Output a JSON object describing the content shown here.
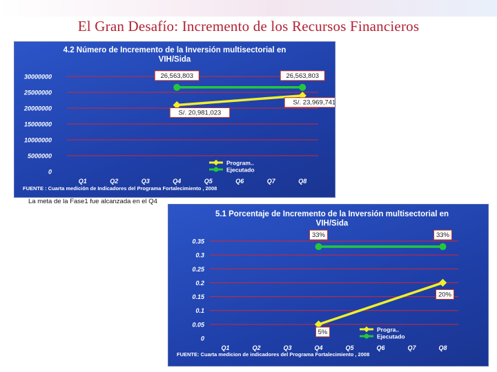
{
  "slide": {
    "title": "El Gran Desafío: Incremento de los Recursos Financieros",
    "note": "La meta de la Fase1 fue alcanzada en el Q4"
  },
  "chart_data": [
    {
      "type": "line",
      "title": "4.2 Número de Incremento de la Inversión multisectorial en VIH/Sida",
      "categories": [
        "Q1",
        "Q2",
        "Q3",
        "Q4",
        "Q5",
        "Q6",
        "Q7",
        "Q8"
      ],
      "ylim": [
        0,
        30000000
      ],
      "yticks": [
        "0",
        "5000000",
        "10000000",
        "15000000",
        "20000000",
        "25000000",
        "30000000"
      ],
      "grid": true,
      "legend_position": "bottom-right",
      "source": "FUENTE : Cuarta medición de Indicadores del Programa Fortalecimiento , 2008",
      "series": [
        {
          "name": "Program..",
          "color": "#f0f02a",
          "points": [
            {
              "x": "Q4",
              "y": 20981023
            },
            {
              "x": "Q8",
              "y": 23969741
            }
          ]
        },
        {
          "name": "Ejecutado",
          "color": "#22c83c",
          "points": [
            {
              "x": "Q4",
              "y": 26563803
            },
            {
              "x": "Q8",
              "y": 26563803
            }
          ]
        }
      ],
      "annotations": [
        {
          "text": "26,563,803",
          "x": "Q4",
          "series": "Ejecutado"
        },
        {
          "text": "26,563,803",
          "x": "Q8",
          "series": "Ejecutado"
        },
        {
          "text": "S/. 20,981,023",
          "x": "Q4",
          "series": "Program.."
        },
        {
          "text": "S/. 23,969,741",
          "x": "Q8",
          "series": "Program.."
        }
      ]
    },
    {
      "type": "line",
      "title": "5.1 Porcentaje de Incremento de la Inversión multisectorial en VIH/Sida",
      "categories": [
        "Q1",
        "Q2",
        "Q3",
        "Q4",
        "Q5",
        "Q6",
        "Q7",
        "Q8"
      ],
      "ylim": [
        0,
        0.35
      ],
      "yticks": [
        "0",
        "0.05",
        "0.1",
        "0.15",
        "0.2",
        "0.25",
        "0.3",
        "0.35"
      ],
      "grid": true,
      "legend_position": "bottom-right",
      "source": "FUENTE: Cuarta medicion de indicadores del Programa Fortalecimiento , 2008",
      "series": [
        {
          "name": "Progra..",
          "color": "#f0f02a",
          "points": [
            {
              "x": "Q4",
              "y": 0.05
            },
            {
              "x": "Q8",
              "y": 0.2
            }
          ]
        },
        {
          "name": "Ejecutado",
          "color": "#22c83c",
          "points": [
            {
              "x": "Q4",
              "y": 0.33
            },
            {
              "x": "Q8",
              "y": 0.33
            }
          ]
        }
      ],
      "annotations": [
        {
          "text": "33%",
          "x": "Q4",
          "series": "Ejecutado"
        },
        {
          "text": "33%",
          "x": "Q8",
          "series": "Ejecutado"
        },
        {
          "text": "5%",
          "x": "Q4",
          "series": "Progra.."
        },
        {
          "text": "20%",
          "x": "Q8",
          "series": "Progra.."
        }
      ]
    }
  ]
}
